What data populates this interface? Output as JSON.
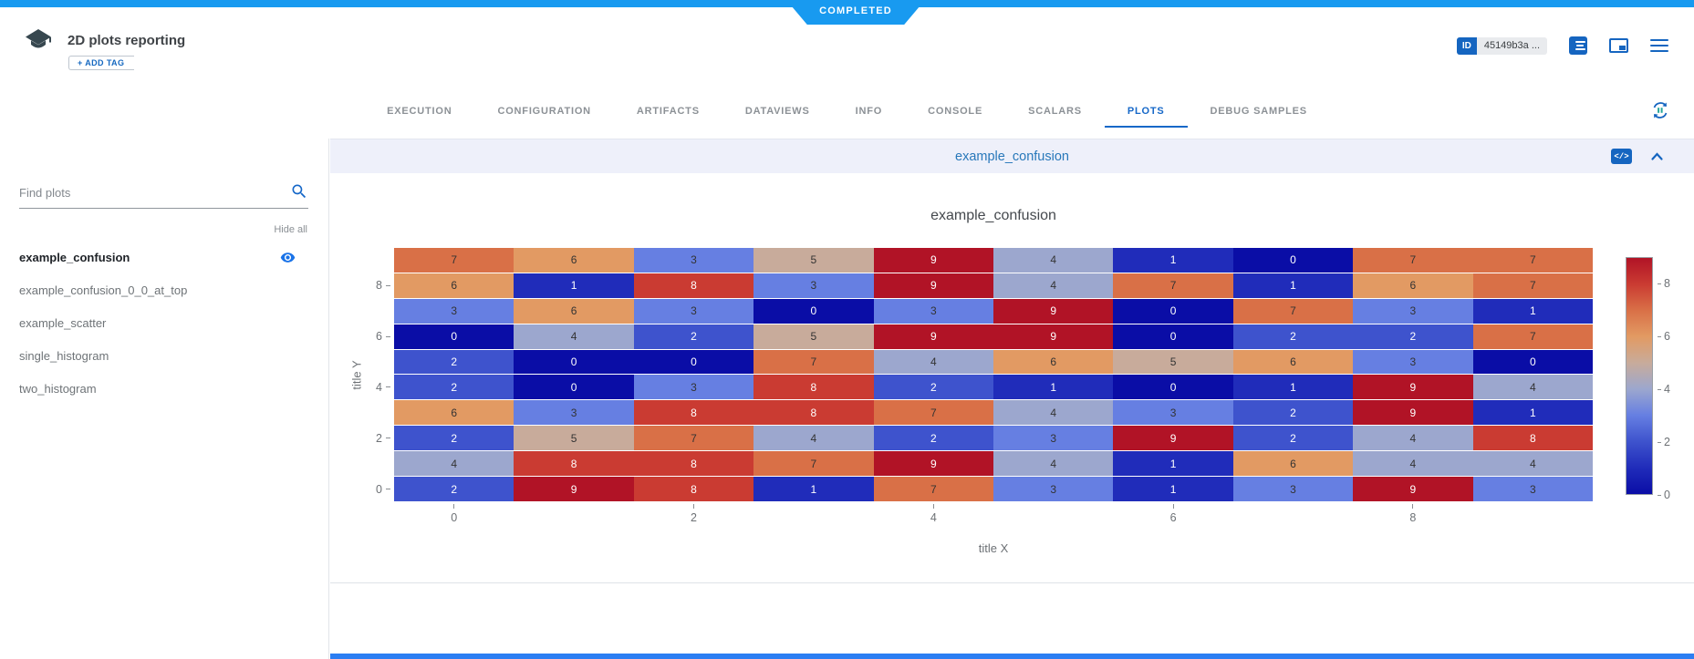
{
  "colors": {
    "banner_blue": "#189af0",
    "accent_blue": "#1565c0",
    "tab_active": "#1668c8",
    "panel_header_bg": "#eef0fa",
    "panel_title_blue": "#2878ba",
    "bottom_strip": "#2c7ef2"
  },
  "status_banner": {
    "label": "COMPLETED"
  },
  "header": {
    "title": "2D plots reporting",
    "add_tag_label": "+ ADD TAG",
    "id_badge": {
      "label": "ID",
      "value": "45149b3a ..."
    }
  },
  "tabs": {
    "items": [
      {
        "label": "EXECUTION",
        "active": false
      },
      {
        "label": "CONFIGURATION",
        "active": false
      },
      {
        "label": "ARTIFACTS",
        "active": false
      },
      {
        "label": "DATAVIEWS",
        "active": false
      },
      {
        "label": "INFO",
        "active": false
      },
      {
        "label": "CONSOLE",
        "active": false
      },
      {
        "label": "SCALARS",
        "active": false
      },
      {
        "label": "PLOTS",
        "active": true
      },
      {
        "label": "DEBUG SAMPLES",
        "active": false
      }
    ]
  },
  "sidebar": {
    "search_placeholder": "Find plots",
    "hide_all_label": "Hide all",
    "items": [
      {
        "label": "example_confusion",
        "active": true,
        "eye_visible": true
      },
      {
        "label": "example_confusion_0_0_at_top",
        "active": false,
        "eye_visible": false
      },
      {
        "label": "example_scatter",
        "active": false,
        "eye_visible": false
      },
      {
        "label": "single_histogram",
        "active": false,
        "eye_visible": false
      },
      {
        "label": "two_histogram",
        "active": false,
        "eye_visible": false
      }
    ]
  },
  "plot_panel": {
    "header_title": "example_confusion"
  },
  "chart_data": {
    "type": "heatmap",
    "title": "example_confusion",
    "xlabel": "title X",
    "ylabel": "title Y",
    "x_range": [
      0,
      9
    ],
    "y_range": [
      0,
      9
    ],
    "x_ticks": [
      "0",
      "2",
      "4",
      "6",
      "8"
    ],
    "y_ticks": [
      "8",
      "6",
      "4",
      "2",
      "0"
    ],
    "rows_top_to_bottom": [
      [
        7,
        6,
        3,
        5,
        9,
        4,
        1,
        0,
        7,
        7
      ],
      [
        6,
        1,
        8,
        3,
        9,
        4,
        7,
        1,
        6,
        7
      ],
      [
        3,
        6,
        3,
        0,
        3,
        9,
        0,
        7,
        3,
        1
      ],
      [
        0,
        4,
        2,
        5,
        9,
        9,
        0,
        2,
        2,
        7
      ],
      [
        2,
        0,
        0,
        7,
        4,
        6,
        5,
        6,
        3,
        0
      ],
      [
        2,
        0,
        3,
        8,
        2,
        1,
        0,
        1,
        9,
        4
      ],
      [
        6,
        3,
        8,
        8,
        7,
        4,
        3,
        2,
        9,
        1
      ],
      [
        2,
        5,
        7,
        4,
        2,
        3,
        9,
        2,
        4,
        8
      ],
      [
        4,
        8,
        8,
        7,
        9,
        4,
        1,
        6,
        4,
        4
      ],
      [
        2,
        9,
        8,
        1,
        7,
        3,
        1,
        3,
        9,
        3
      ]
    ],
    "colorscale_name": "RdBu reversed (blue low, red high)",
    "value_colors": {
      "0": "#0a0da6",
      "1": "#202cba",
      "2": "#3e53cd",
      "3": "#667fe2",
      "4": "#9ca7ce",
      "5": "#c8ab9b",
      "6": "#e29a63",
      "7": "#d97047",
      "8": "#ca3b32",
      "9": "#b11326"
    },
    "light_text_values": [
      0,
      1,
      2,
      8,
      9
    ],
    "colorbar": {
      "min": 0,
      "max": 9,
      "ticks": [
        "8",
        "6",
        "4",
        "2",
        "0"
      ]
    },
    "legend_position": "right",
    "grid": false
  }
}
